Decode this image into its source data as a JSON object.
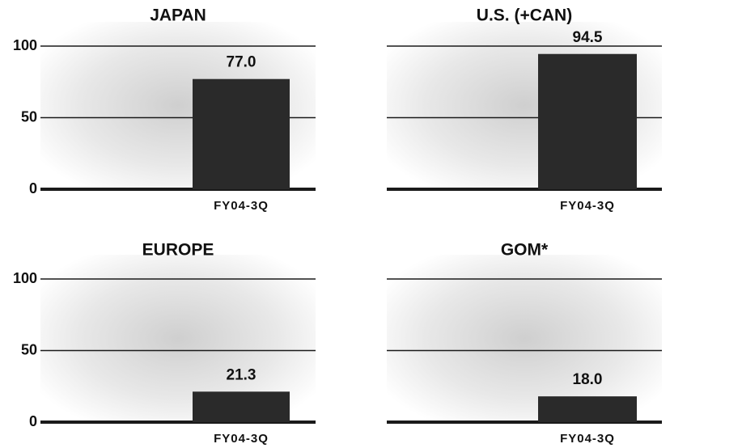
{
  "chart_data": [
    {
      "type": "bar",
      "title": "JAPAN",
      "categories": [
        "FY04-3Q"
      ],
      "values": [
        77.0
      ],
      "value_labels": [
        "77.0"
      ],
      "color": "#2a2a2a",
      "ylim": [
        0,
        100
      ],
      "yticks": [
        0,
        50,
        100
      ],
      "tick_labels": true,
      "grid": true
    },
    {
      "type": "bar",
      "title": "U.S. (+CAN)",
      "categories": [
        "FY04-3Q"
      ],
      "values": [
        94.5
      ],
      "value_labels": [
        "94.5"
      ],
      "color": "#2a2a2a",
      "ylim": [
        0,
        100
      ],
      "yticks": [
        0,
        50,
        100
      ],
      "tick_labels": false,
      "grid": true
    },
    {
      "type": "bar",
      "title": "EUROPE",
      "categories": [
        "FY04-3Q"
      ],
      "values": [
        21.3
      ],
      "value_labels": [
        "21.3"
      ],
      "color": "#2a2a2a",
      "ylim": [
        0,
        100
      ],
      "yticks": [
        0,
        50,
        100
      ],
      "tick_labels": true,
      "grid": true
    },
    {
      "type": "bar",
      "title": "GOM*",
      "categories": [
        "FY04-3Q"
      ],
      "values": [
        18.0
      ],
      "value_labels": [
        "18.0"
      ],
      "color": "#2a2a2a",
      "ylim": [
        0,
        100
      ],
      "yticks": [
        0,
        50,
        100
      ],
      "tick_labels": false,
      "grid": true
    }
  ]
}
